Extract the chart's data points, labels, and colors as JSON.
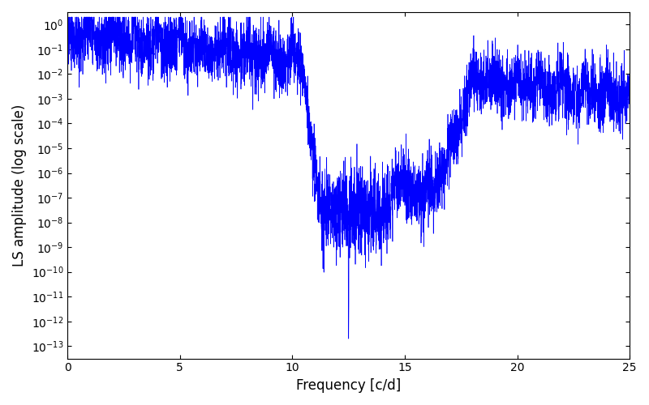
{
  "title": "",
  "xlabel": "Frequency [c/d]",
  "ylabel": "LS amplitude (log scale)",
  "line_color": "#0000FF",
  "xlim": [
    0,
    25
  ],
  "ylim_log": [
    -13.5,
    0.5
  ],
  "figsize": [
    8.0,
    5.0
  ],
  "dpi": 100,
  "freq_max": 25.0,
  "n_points": 5000,
  "seed": 42
}
